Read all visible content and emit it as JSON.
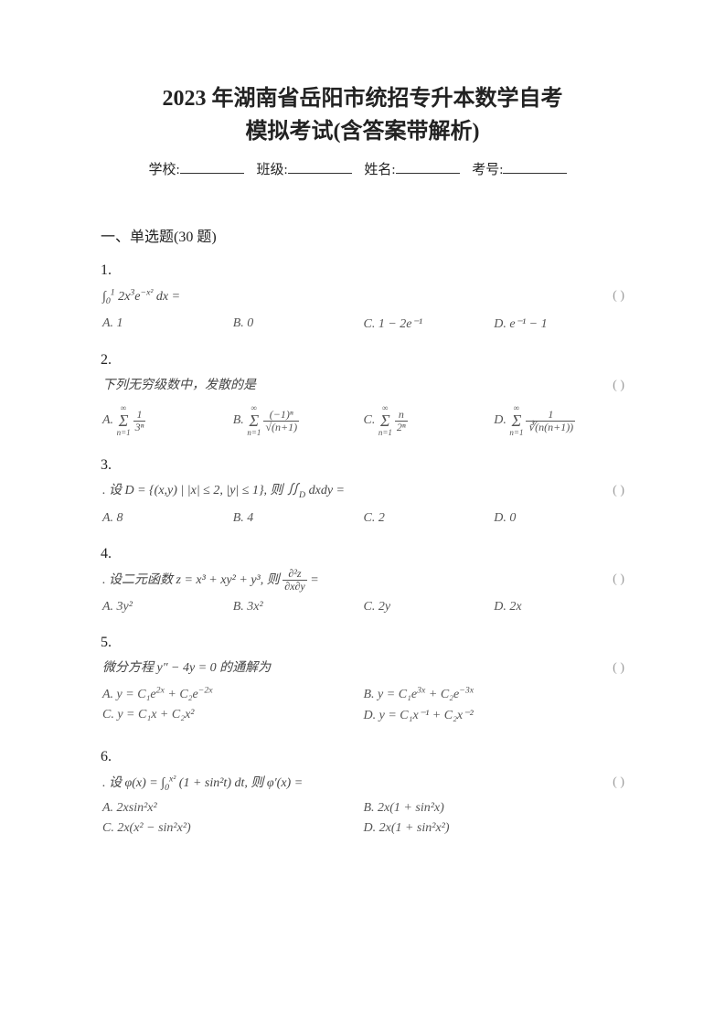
{
  "title_line1": "2023 年湖南省岳阳市统招专升本数学自考",
  "title_line2": "模拟考试(含答案带解析)",
  "info": {
    "school": "学校:",
    "class": "班级:",
    "name": "姓名:",
    "exam_no": "考号:"
  },
  "section_heading": "一、单选题(30 题)",
  "paren_marker": "(      )",
  "questions": [
    {
      "num": "1.",
      "body_html": "∫<sub>0</sub><sup>1</sup> 2x<sup>3</sup>e<sup>−x²</sup> dx =",
      "options": [
        "A. 1",
        "B. 0",
        "C. 1 − 2e⁻¹",
        "D. e⁻¹ − 1"
      ],
      "layout": "4col"
    },
    {
      "num": "2.",
      "body_html": "下列无穷级数中，发散的是",
      "options": [
        "A. <span class=\"sum-sym\"><span class=\"sum-top\">∞</span><span class=\"sum-mid\">Σ</span><span class=\"sum-bot\">n=1</span></span><span class=\"frac\"><span class=\"num\">1</span><span class=\"den\">3ⁿ</span></span>",
        "B. <span class=\"sum-sym\"><span class=\"sum-top\">∞</span><span class=\"sum-mid\">Σ</span><span class=\"sum-bot\">n=1</span></span><span class=\"frac\"><span class=\"num\">(−1)ⁿ</span><span class=\"den\">√(n+1)</span></span>",
        "C. <span class=\"sum-sym\"><span class=\"sum-top\">∞</span><span class=\"sum-mid\">Σ</span><span class=\"sum-bot\">n=1</span></span><span class=\"frac\"><span class=\"num\">n</span><span class=\"den\">2ⁿ</span></span>",
        "D. <span class=\"sum-sym\"><span class=\"sum-top\">∞</span><span class=\"sum-mid\">Σ</span><span class=\"sum-bot\">n=1</span></span><span class=\"frac\"><span class=\"num\">1</span><span class=\"den\">∛(n(n+1))</span></span>"
      ],
      "layout": "4col"
    },
    {
      "num": "3.",
      "body_html": ". 设 D = {(x,y) | |x| ≤ 2,  |y| ≤ 1}, 则 ∬<sub>D</sub> dxdy =",
      "options": [
        "A. 8",
        "B. 4",
        "C. 2",
        "D. 0"
      ],
      "layout": "4col"
    },
    {
      "num": "4.",
      "body_html": ". 设二元函数 z = x³ + xy² + y³, 则 <span class=\"frac\"><span class=\"num\">∂²z</span><span class=\"den\">∂x∂y</span></span> =",
      "options": [
        "A. 3y²",
        "B. 3x²",
        "C. 2y",
        "D. 2x"
      ],
      "layout": "4col"
    },
    {
      "num": "5.",
      "body_html": "微分方程 y″ − 4y = 0 的通解为",
      "options": [
        "A. y = C₁e<sup>2x</sup> + C₂e<sup>−2x</sup>",
        "B. y = C₁e<sup>3x</sup> + C₂e<sup>−3x</sup>",
        "C. y = C₁x + C₂x²",
        "D. y = C₁x⁻¹ + C₂x⁻²"
      ],
      "layout": "2col"
    },
    {
      "num": "6.",
      "body_html": ". 设 φ(x) = ∫<sub>0</sub><sup>x²</sup> (1 + sin²t) dt, 则 φ′(x) =",
      "options": [
        "A. 2xsin²x²",
        "B. 2x(1 + sin²x)",
        "C. 2x(x² − sin²x²)",
        "D. 2x(1 + sin²x²)"
      ],
      "layout": "2col"
    }
  ]
}
